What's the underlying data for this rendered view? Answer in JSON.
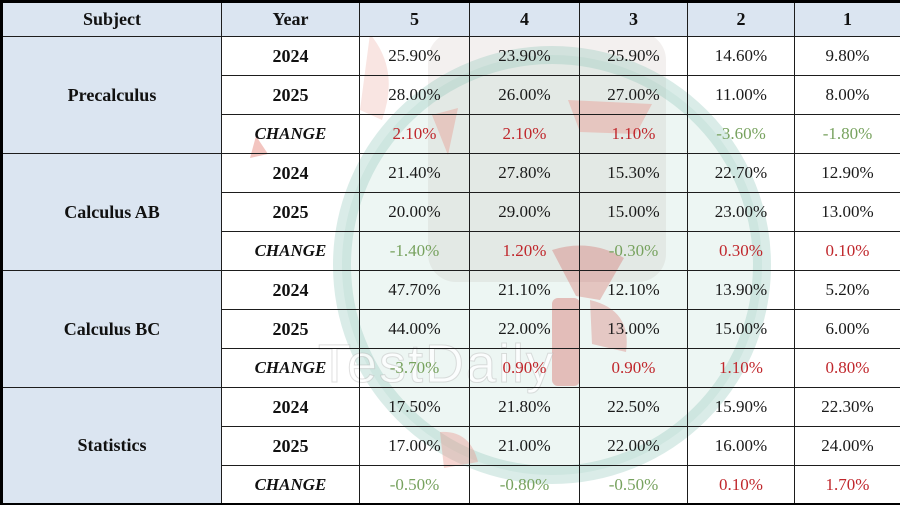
{
  "watermark": {
    "text": "TestDaily"
  },
  "colors": {
    "header_bg": "#dbe5f1",
    "subject_bg": "#dbe5f1",
    "positive_change": "#c0272c",
    "negative_change": "#77a25e",
    "body_text": "#1a1a1a",
    "border": "#1d1d1d",
    "watermark_teal": "#8dc5b7",
    "watermark_red": "#d0524c"
  },
  "chart_data": {
    "type": "table",
    "columns": [
      "Subject",
      "Year",
      "5",
      "4",
      "3",
      "2",
      "1"
    ],
    "sections": [
      {
        "subject": "Precalculus",
        "rows": [
          {
            "label": "2024",
            "change": false,
            "values": [
              "25.90%",
              "23.90%",
              "25.90%",
              "14.60%",
              "9.80%"
            ]
          },
          {
            "label": "2025",
            "change": false,
            "values": [
              "28.00%",
              "26.00%",
              "27.00%",
              "11.00%",
              "8.00%"
            ]
          },
          {
            "label": "CHANGE",
            "change": true,
            "values": [
              "2.10%",
              "2.10%",
              "1.10%",
              "-3.60%",
              "-1.80%"
            ]
          }
        ]
      },
      {
        "subject": "Calculus AB",
        "rows": [
          {
            "label": "2024",
            "change": false,
            "values": [
              "21.40%",
              "27.80%",
              "15.30%",
              "22.70%",
              "12.90%"
            ]
          },
          {
            "label": "2025",
            "change": false,
            "values": [
              "20.00%",
              "29.00%",
              "15.00%",
              "23.00%",
              "13.00%"
            ]
          },
          {
            "label": "CHANGE",
            "change": true,
            "values": [
              "-1.40%",
              "1.20%",
              "-0.30%",
              "0.30%",
              "0.10%"
            ]
          }
        ]
      },
      {
        "subject": "Calculus BC",
        "rows": [
          {
            "label": "2024",
            "change": false,
            "values": [
              "47.70%",
              "21.10%",
              "12.10%",
              "13.90%",
              "5.20%"
            ]
          },
          {
            "label": "2025",
            "change": false,
            "values": [
              "44.00%",
              "22.00%",
              "13.00%",
              "15.00%",
              "6.00%"
            ]
          },
          {
            "label": "CHANGE",
            "change": true,
            "values": [
              "-3.70%",
              "0.90%",
              "0.90%",
              "1.10%",
              "0.80%"
            ]
          }
        ]
      },
      {
        "subject": "Statistics",
        "rows": [
          {
            "label": "2024",
            "change": false,
            "values": [
              "17.50%",
              "21.80%",
              "22.50%",
              "15.90%",
              "22.30%"
            ]
          },
          {
            "label": "2025",
            "change": false,
            "values": [
              "17.00%",
              "21.00%",
              "22.00%",
              "16.00%",
              "24.00%"
            ]
          },
          {
            "label": "CHANGE",
            "change": true,
            "values": [
              "-0.50%",
              "-0.80%",
              "-0.50%",
              "0.10%",
              "1.70%"
            ]
          }
        ]
      }
    ]
  }
}
